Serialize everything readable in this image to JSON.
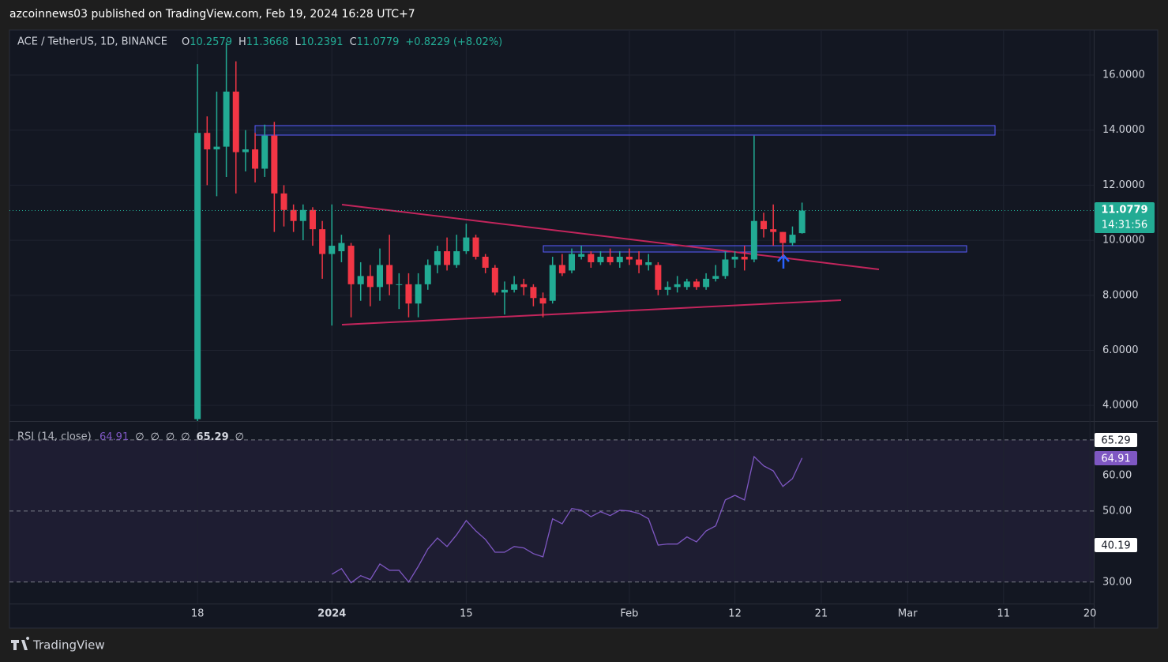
{
  "publisher": "azcoinnews03 published on TradingView.com, Feb 19, 2024 16:28 UTC+7",
  "brand": "TradingView",
  "chart_data": [
    {
      "type": "candlestick",
      "title": "ACE / TetherUS, 1D, BINANCE",
      "ohlc": [
        {
          "key": "O",
          "text": "10.2579"
        },
        {
          "key": "H",
          "text": "11.3668"
        },
        {
          "key": "L",
          "text": "10.2391"
        },
        {
          "key": "C",
          "text": "11.0779"
        }
      ],
      "change_label": "+0.8229 (+8.02%)",
      "last_price_label": "11.0779",
      "countdown": "14:31:56",
      "up_color": "#22ab94",
      "down_color": "#f23645",
      "open": [
        3.5,
        13.9,
        13.3,
        13.4,
        15.4,
        13.2,
        13.3,
        12.6,
        13.8,
        11.7,
        11.1,
        10.7,
        11.1,
        10.4,
        9.5,
        9.6,
        9.8,
        8.4,
        8.7,
        8.3,
        9.1,
        8.4,
        8.4,
        7.7,
        8.4,
        9.1,
        9.6,
        9.1,
        9.6,
        10.1,
        9.4,
        9.0,
        8.1,
        8.2,
        8.4,
        8.3,
        7.9,
        7.8,
        9.1,
        8.9,
        9.4,
        9.5,
        9.2,
        9.4,
        9.2,
        9.4,
        9.3,
        9.1,
        9.1,
        8.2,
        8.3,
        8.3,
        8.5,
        8.3,
        8.6,
        8.7,
        9.3,
        9.4,
        9.3,
        10.7,
        10.4,
        10.3,
        9.9,
        10.2579
      ],
      "high": [
        16.4,
        14.5,
        15.4,
        17.2,
        16.5,
        14.0,
        13.9,
        14.2,
        14.3,
        12.0,
        11.3,
        11.3,
        11.2,
        10.7,
        11.3,
        10.2,
        9.9,
        9.2,
        9.1,
        9.7,
        10.2,
        8.8,
        8.8,
        8.8,
        9.3,
        9.8,
        10.1,
        10.2,
        10.6,
        10.2,
        9.5,
        9.1,
        8.5,
        8.7,
        8.6,
        8.4,
        8.1,
        9.4,
        9.5,
        9.7,
        9.8,
        9.6,
        9.6,
        9.7,
        9.6,
        9.7,
        9.6,
        9.5,
        9.2,
        8.5,
        8.7,
        8.6,
        8.6,
        8.8,
        9.1,
        9.6,
        9.6,
        9.8,
        13.8,
        11.0,
        11.3,
        10.3,
        10.5,
        11.3668
      ],
      "low": [
        3.4,
        12.0,
        11.6,
        12.3,
        11.7,
        12.5,
        12.1,
        12.3,
        10.3,
        10.5,
        10.3,
        10.0,
        9.8,
        8.6,
        6.9,
        9.2,
        7.2,
        7.8,
        7.6,
        7.8,
        8.0,
        7.5,
        7.2,
        7.2,
        8.2,
        8.8,
        8.9,
        9.0,
        9.5,
        9.3,
        8.8,
        8.0,
        7.3,
        8.1,
        8.0,
        7.6,
        7.2,
        7.7,
        8.7,
        8.8,
        9.3,
        9.0,
        9.1,
        9.1,
        9.0,
        9.1,
        8.8,
        8.9,
        8.0,
        8.0,
        8.1,
        8.2,
        8.2,
        8.2,
        8.5,
        8.6,
        9.0,
        8.9,
        9.2,
        10.1,
        9.8,
        9.4,
        9.8,
        10.2391
      ],
      "close": [
        13.9,
        13.3,
        13.4,
        15.4,
        13.2,
        13.3,
        12.6,
        13.8,
        11.7,
        11.1,
        10.7,
        11.1,
        10.4,
        9.5,
        9.8,
        9.9,
        8.4,
        8.7,
        8.3,
        9.1,
        8.4,
        8.4,
        7.7,
        8.4,
        9.1,
        9.6,
        9.1,
        9.6,
        10.1,
        9.4,
        9.0,
        8.1,
        8.2,
        8.4,
        8.3,
        7.9,
        7.7,
        9.1,
        8.8,
        9.5,
        9.5,
        9.2,
        9.4,
        9.2,
        9.4,
        9.3,
        9.1,
        9.2,
        8.2,
        8.3,
        8.4,
        8.5,
        8.3,
        8.6,
        8.7,
        9.3,
        9.4,
        9.3,
        10.7,
        10.4,
        10.3,
        9.9,
        10.2,
        11.0779
      ],
      "xlim": [
        -19.6,
        93.4
      ],
      "xticks": [
        {
          "value": 0,
          "label": "18"
        },
        {
          "value": 14,
          "label": "2024"
        },
        {
          "value": 28,
          "label": "15"
        },
        {
          "value": 45,
          "label": "Feb"
        },
        {
          "value": 56,
          "label": "12"
        },
        {
          "value": 65,
          "label": "21"
        },
        {
          "value": 74,
          "label": "Mar"
        },
        {
          "value": 84,
          "label": "11"
        },
        {
          "value": 93,
          "label": "20"
        }
      ],
      "ylim": [
        3.43,
        17.58
      ],
      "yticks": [
        {
          "value": 16,
          "label": "16.0000"
        },
        {
          "value": 14,
          "label": "14.0000"
        },
        {
          "value": 12,
          "label": "12.0000"
        },
        {
          "value": 10,
          "label": "10.0000"
        },
        {
          "value": 8,
          "label": "8.0000"
        },
        {
          "value": 6,
          "label": "6.0000"
        },
        {
          "value": 4,
          "label": "4.0000"
        }
      ],
      "grid": true
    },
    {
      "type": "line",
      "title": "RSI (14, close)",
      "legend_values": [
        "64.91",
        "∅",
        "∅",
        "∅",
        "∅",
        "65.29",
        "∅"
      ],
      "scale_labels": [
        "65.29",
        "64.91",
        "40.19"
      ],
      "series": [
        {
          "name": "RSI",
          "color": "#7e57c2",
          "values": [
            null,
            null,
            null,
            null,
            null,
            null,
            null,
            null,
            null,
            null,
            null,
            null,
            null,
            null,
            32.2,
            33.8,
            29.8,
            31.8,
            30.7,
            35.1,
            33.3,
            33.3,
            30.0,
            34.4,
            39.3,
            42.4,
            40.0,
            43.3,
            47.3,
            44.4,
            42.0,
            38.4,
            38.4,
            40.0,
            39.6,
            38.0,
            37.1,
            47.8,
            46.4,
            50.7,
            50.2,
            48.4,
            49.8,
            48.7,
            50.2,
            50.0,
            49.3,
            47.8,
            40.4,
            40.7,
            40.7,
            42.7,
            41.3,
            44.4,
            45.8,
            53.1,
            54.4,
            53.1,
            65.3,
            62.7,
            61.3,
            56.9,
            59.1,
            64.91
          ]
        }
      ],
      "ylim": [
        24.4,
        75.3
      ],
      "yticks": [
        {
          "value": 60,
          "label": "60.00"
        },
        {
          "value": 50,
          "label": "50.00"
        },
        {
          "value": 30,
          "label": "30.00"
        }
      ],
      "levels": [
        70,
        50,
        30
      ]
    }
  ]
}
